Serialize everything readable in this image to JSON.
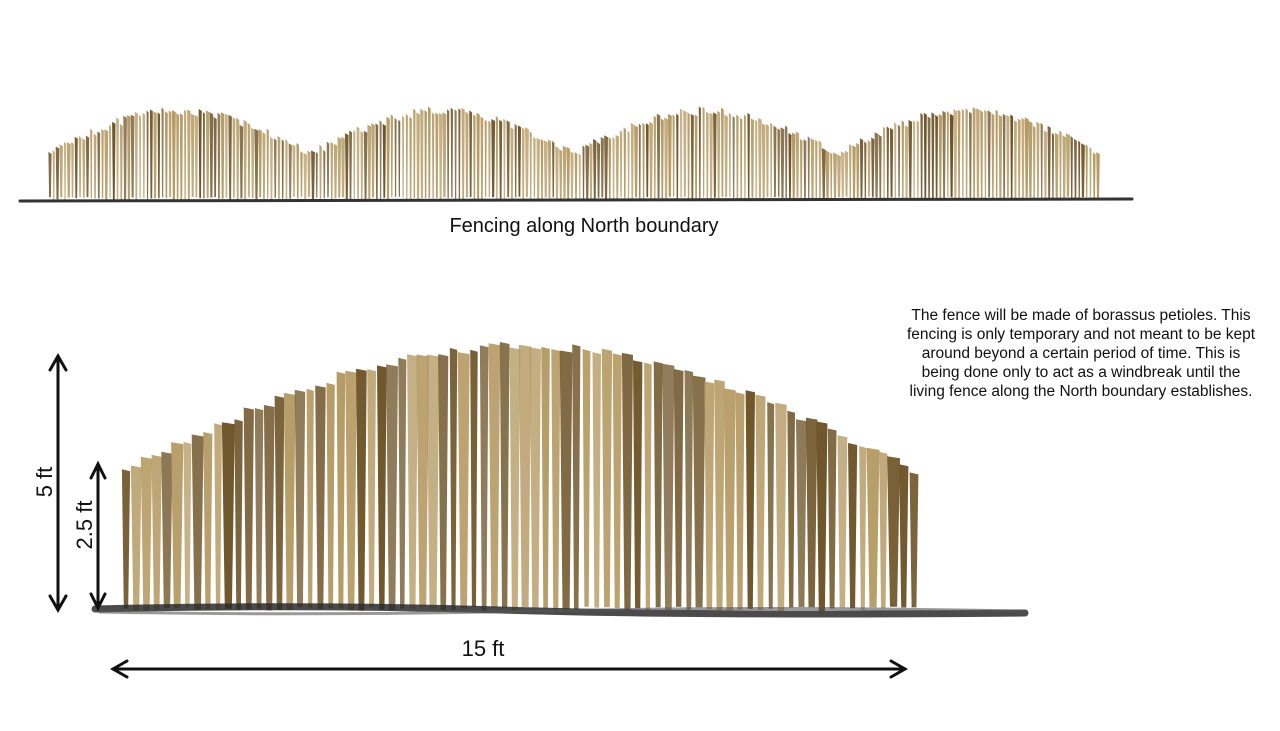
{
  "diagram": {
    "top_caption": "Fencing along North boundary",
    "note": "The fence will be made of borassus petioles. This fencing is only temporary and not meant to be kept around beyond a certain period of time. This is being done only to act as a windbreak until the living fence along the North boundary establishes.",
    "dimensions": {
      "height_total": "5 ft",
      "height_edge": "2.5 ft",
      "width": "15 ft"
    },
    "colors": {
      "petiole_light": "#b59a63",
      "petiole_dark": "#6e5428",
      "ground": "#2b2b2b",
      "arrow": "#111111"
    },
    "fence_top_panels": 4
  }
}
